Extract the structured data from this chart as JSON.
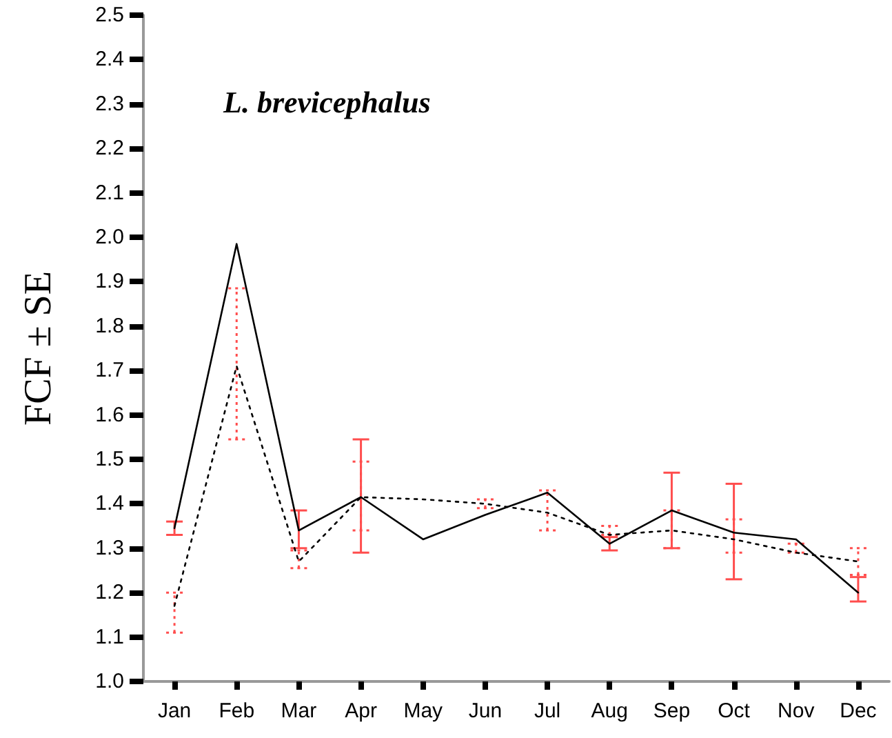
{
  "chart_data": {
    "type": "line",
    "title": "L. brevicephalus",
    "ylabel": "FCF ± SE",
    "categories": [
      "Jan",
      "Feb",
      "Mar",
      "Apr",
      "May",
      "Jun",
      "Jul",
      "Aug",
      "Sep",
      "Oct",
      "Nov",
      "Dec"
    ],
    "series": [
      {
        "color": "#000000",
        "line_style": "solid",
        "values": [
          1.345,
          1.985,
          1.34,
          1.415,
          1.32,
          1.375,
          1.425,
          1.31,
          1.385,
          1.335,
          1.32,
          1.2
        ],
        "errors": [
          [
            1.33,
            1.36
          ],
          null,
          [
            1.3,
            1.385
          ],
          [
            1.29,
            1.545
          ],
          null,
          null,
          null,
          [
            1.295,
            1.325
          ],
          [
            1.3,
            1.47
          ],
          [
            1.23,
            1.445
          ],
          null,
          [
            1.18,
            1.235
          ]
        ]
      },
      {
        "color": "#000000",
        "line_style": "dotted",
        "values": [
          1.17,
          1.71,
          1.27,
          1.415,
          1.41,
          1.4,
          1.38,
          1.33,
          1.34,
          1.32,
          1.29,
          1.27
        ],
        "errors": [
          [
            1.11,
            1.2
          ],
          [
            1.545,
            1.885
          ],
          [
            1.255,
            1.295
          ],
          [
            1.34,
            1.495
          ],
          null,
          [
            1.39,
            1.41
          ],
          [
            1.34,
            1.43
          ],
          [
            1.33,
            1.35
          ],
          [
            1.3,
            1.385
          ],
          [
            1.29,
            1.365
          ],
          [
            1.29,
            1.31
          ],
          [
            1.24,
            1.3
          ]
        ]
      }
    ],
    "ylim": [
      1.0,
      2.5
    ],
    "yticks": [
      {
        "value": 1,
        "label": "1.0"
      },
      1.1,
      1.2,
      1.3,
      1.4,
      1.5,
      1.6,
      1.7,
      1.8,
      1.9,
      {
        "value": 2,
        "label": "2.0"
      },
      2.1,
      2.2,
      2.3,
      2.4,
      2.5
    ],
    "grid": false,
    "marker": "none"
  }
}
